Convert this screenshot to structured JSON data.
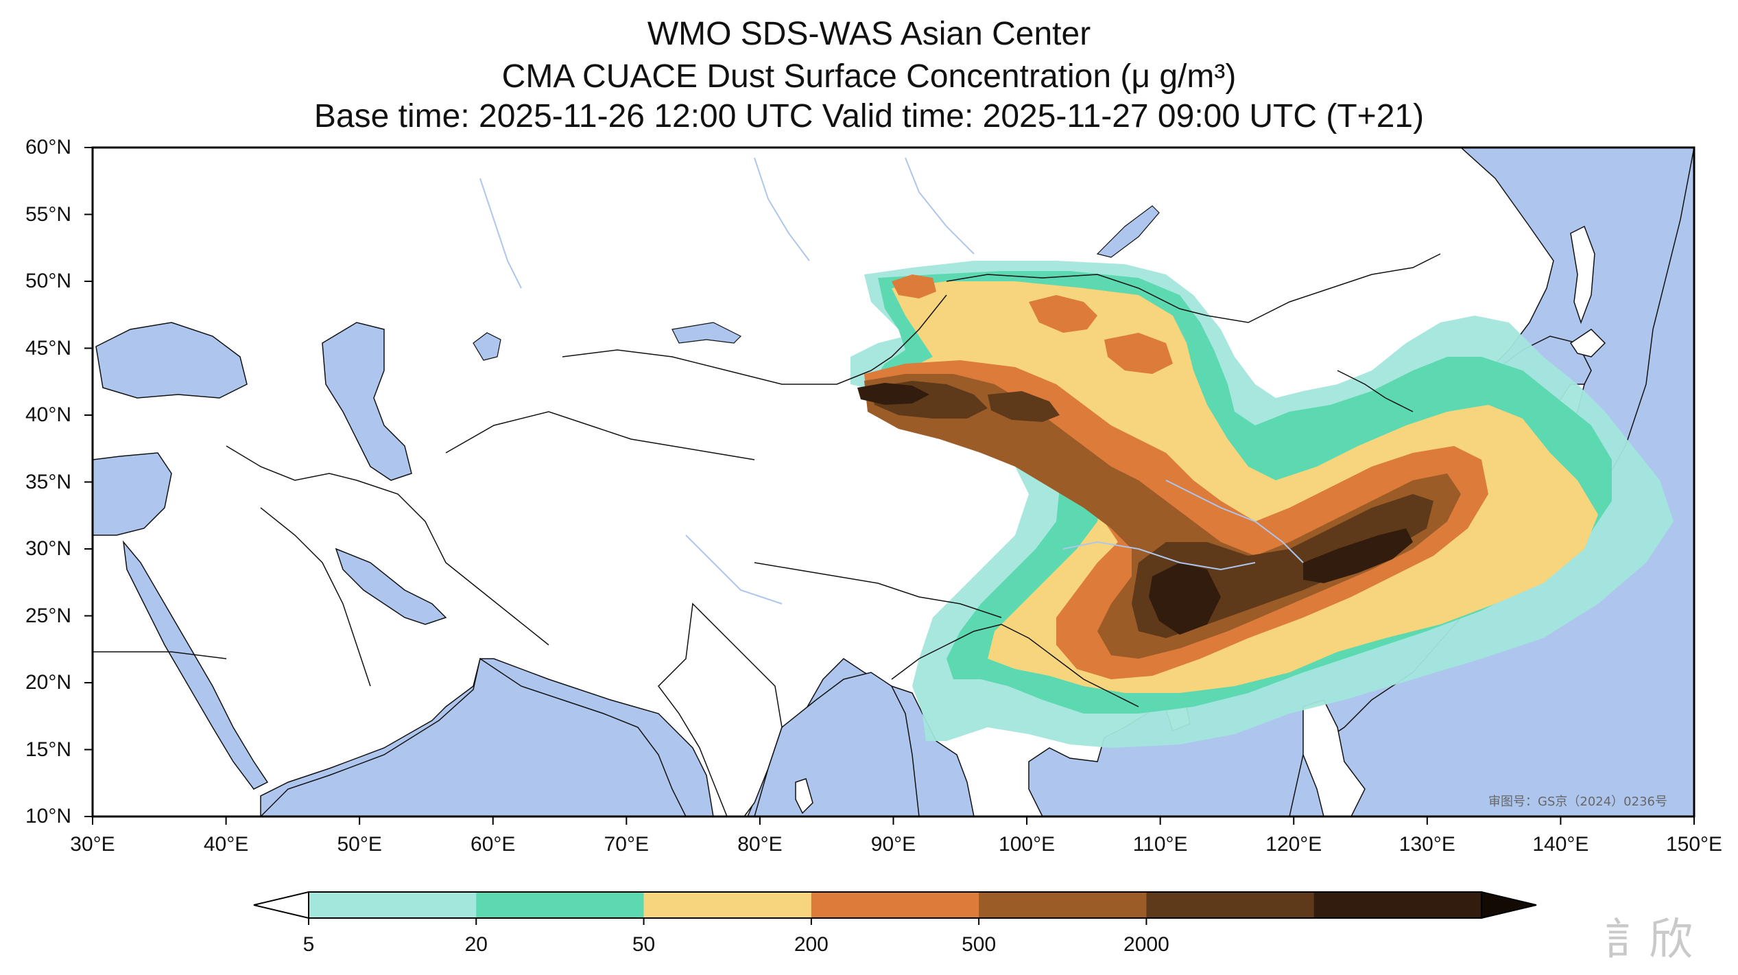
{
  "header": {
    "line1": "WMO SDS-WAS Asian Center",
    "line2": "CMA CUACE Dust Surface Concentration (μ g/m³)",
    "line3": "Base time: 2025-11-26 12:00 UTC Valid time: 2025-11-27 09:00 UTC (T+21)"
  },
  "axes": {
    "lon_labels": [
      "30°E",
      "40°E",
      "50°E",
      "60°E",
      "70°E",
      "80°E",
      "90°E",
      "100°E",
      "110°E",
      "120°E",
      "130°E",
      "140°E",
      "150°E"
    ],
    "lat_labels": [
      "60°N",
      "55°N",
      "50°N",
      "45°N",
      "40°N",
      "35°N",
      "30°N",
      "25°N",
      "20°N",
      "15°N",
      "10°N"
    ]
  },
  "map": {
    "extent_lon": [
      30,
      150
    ],
    "extent_lat": [
      10,
      60
    ],
    "ocean_color": "#aec6ee",
    "land_color": "#ffffff",
    "stamp_text": "审图号：GS京（2024）0236号"
  },
  "colorbar": {
    "labels": [
      "5",
      "20",
      "50",
      "200",
      "500",
      "2000"
    ],
    "colors": [
      "#a3e6dc",
      "#5cd9b0",
      "#f7d57c",
      "#dc7b3a",
      "#9b5c28",
      "#5f3a1a",
      "#321c0d"
    ],
    "under_color": "#ffffff",
    "over_color": "#140a04"
  },
  "watermark": {
    "text": "訁欣"
  }
}
